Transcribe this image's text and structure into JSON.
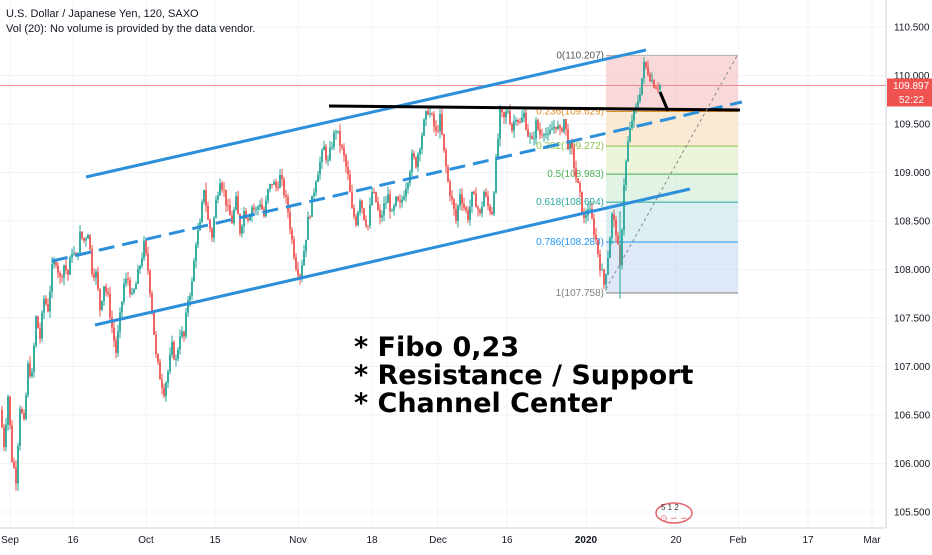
{
  "header": {
    "symbol_line": "U.S. Dollar / Japanese Yen, 120, SAXO",
    "volume_line": "Vol (20): No volume is provided by the data vendor."
  },
  "colors": {
    "background": "#ffffff",
    "candle_up": "#26a69a",
    "candle_down": "#ef5350",
    "channel": "#2c8fd9",
    "resistance": "#000000",
    "current_price_line": "#f28b8b",
    "current_price_tag": "#ef5350"
  },
  "price_tags": {
    "last_price": "109.897",
    "countdown": "52:22"
  },
  "annotations": [
    "* Fibo 0,23",
    "* Resistance / Support",
    "* Channel Center"
  ],
  "watermark_text": "5 1   2",
  "chart_data": {
    "type": "candlestick",
    "title": "U.S. Dollar / Japanese Yen, 120, SAXO",
    "ylim": [
      105.4,
      110.8
    ],
    "y_ticks": [
      "105.500",
      "106.000",
      "106.500",
      "107.000",
      "107.500",
      "108.000",
      "108.500",
      "109.000",
      "109.500",
      "110.000",
      "110.500"
    ],
    "x_ticks": [
      "Sep",
      "16",
      "Oct",
      "15",
      "Nov",
      "18",
      "Dec",
      "16",
      "2020",
      "20",
      "Feb",
      "17",
      "Mar"
    ],
    "last_price": 109.897,
    "countdown": "52:22",
    "close_path": [
      [
        0,
        106.55
      ],
      [
        4,
        106.2
      ],
      [
        8,
        106.7
      ],
      [
        12,
        106.05
      ],
      [
        16,
        105.85
      ],
      [
        20,
        106.6
      ],
      [
        24,
        106.4
      ],
      [
        28,
        107.0
      ],
      [
        32,
        106.9
      ],
      [
        36,
        107.5
      ],
      [
        40,
        107.3
      ],
      [
        44,
        107.7
      ],
      [
        48,
        107.6
      ],
      [
        52,
        108.0
      ],
      [
        56,
        108.1
      ],
      [
        60,
        107.9
      ],
      [
        64,
        108.05
      ],
      [
        68,
        107.95
      ],
      [
        72,
        108.2
      ],
      [
        76,
        108.1
      ],
      [
        80,
        108.35
      ],
      [
        84,
        108.3
      ],
      [
        88,
        108.4
      ],
      [
        92,
        108.0
      ],
      [
        96,
        107.95
      ],
      [
        100,
        107.6
      ],
      [
        104,
        107.85
      ],
      [
        108,
        107.7
      ],
      [
        112,
        107.4
      ],
      [
        116,
        107.15
      ],
      [
        120,
        107.5
      ],
      [
        124,
        107.85
      ],
      [
        128,
        107.9
      ],
      [
        132,
        107.7
      ],
      [
        136,
        107.85
      ],
      [
        140,
        108.05
      ],
      [
        144,
        108.25
      ],
      [
        148,
        108.0
      ],
      [
        152,
        107.6
      ],
      [
        156,
        107.1
      ],
      [
        160,
        106.9
      ],
      [
        164,
        106.75
      ],
      [
        168,
        106.95
      ],
      [
        172,
        107.2
      ],
      [
        176,
        107.05
      ],
      [
        180,
        107.35
      ],
      [
        184,
        107.3
      ],
      [
        188,
        107.7
      ],
      [
        192,
        107.85
      ],
      [
        196,
        108.3
      ],
      [
        200,
        108.45
      ],
      [
        204,
        108.85
      ],
      [
        208,
        108.5
      ],
      [
        212,
        108.35
      ],
      [
        216,
        108.7
      ],
      [
        220,
        108.95
      ],
      [
        224,
        108.8
      ],
      [
        228,
        108.6
      ],
      [
        232,
        108.5
      ],
      [
        236,
        108.7
      ],
      [
        240,
        108.4
      ],
      [
        244,
        108.6
      ],
      [
        248,
        108.55
      ],
      [
        252,
        108.65
      ],
      [
        256,
        108.6
      ],
      [
        260,
        108.7
      ],
      [
        264,
        108.55
      ],
      [
        268,
        108.8
      ],
      [
        272,
        108.9
      ],
      [
        276,
        108.85
      ],
      [
        280,
        108.95
      ],
      [
        284,
        108.8
      ],
      [
        288,
        108.6
      ],
      [
        292,
        108.3
      ],
      [
        296,
        108.05
      ],
      [
        300,
        107.95
      ],
      [
        304,
        108.2
      ],
      [
        308,
        108.5
      ],
      [
        312,
        108.7
      ],
      [
        316,
        108.95
      ],
      [
        320,
        109.1
      ],
      [
        324,
        109.25
      ],
      [
        328,
        109.1
      ],
      [
        332,
        109.3
      ],
      [
        336,
        109.45
      ],
      [
        340,
        109.3
      ],
      [
        344,
        109.15
      ],
      [
        348,
        108.95
      ],
      [
        352,
        108.6
      ],
      [
        356,
        108.5
      ],
      [
        360,
        108.75
      ],
      [
        364,
        108.55
      ],
      [
        368,
        108.45
      ],
      [
        372,
        108.8
      ],
      [
        376,
        108.7
      ],
      [
        380,
        108.5
      ],
      [
        384,
        108.65
      ],
      [
        388,
        108.75
      ],
      [
        392,
        108.55
      ],
      [
        396,
        108.7
      ],
      [
        400,
        108.65
      ],
      [
        404,
        108.8
      ],
      [
        408,
        108.95
      ],
      [
        412,
        109.15
      ],
      [
        416,
        109.1
      ],
      [
        420,
        109.3
      ],
      [
        424,
        109.5
      ],
      [
        428,
        109.65
      ],
      [
        432,
        109.55
      ],
      [
        436,
        109.4
      ],
      [
        440,
        109.55
      ],
      [
        444,
        109.2
      ],
      [
        448,
        108.9
      ],
      [
        452,
        108.7
      ],
      [
        456,
        108.5
      ],
      [
        460,
        108.8
      ],
      [
        464,
        108.65
      ],
      [
        468,
        108.55
      ],
      [
        472,
        108.75
      ],
      [
        476,
        108.7
      ],
      [
        480,
        108.55
      ],
      [
        484,
        108.8
      ],
      [
        488,
        108.65
      ],
      [
        492,
        108.6
      ],
      [
        496,
        109.1
      ],
      [
        500,
        109.6
      ],
      [
        504,
        109.55
      ],
      [
        508,
        109.65
      ],
      [
        512,
        109.45
      ],
      [
        516,
        109.6
      ],
      [
        520,
        109.5
      ],
      [
        524,
        109.6
      ],
      [
        528,
        109.4
      ],
      [
        532,
        109.3
      ],
      [
        536,
        109.5
      ],
      [
        540,
        109.4
      ],
      [
        544,
        109.45
      ],
      [
        548,
        109.35
      ],
      [
        552,
        109.45
      ],
      [
        556,
        109.5
      ],
      [
        560,
        109.4
      ],
      [
        564,
        109.55
      ],
      [
        568,
        109.3
      ],
      [
        572,
        109.2
      ],
      [
        576,
        108.95
      ],
      [
        580,
        108.75
      ],
      [
        584,
        108.5
      ],
      [
        588,
        108.65
      ],
      [
        592,
        108.5
      ],
      [
        596,
        108.3
      ],
      [
        600,
        108.05
      ],
      [
        604,
        107.85
      ],
      [
        608,
        108.15
      ],
      [
        612,
        108.55
      ],
      [
        616,
        108.4
      ],
      [
        620,
        108.0
      ],
      [
        624,
        108.9
      ],
      [
        628,
        109.3
      ],
      [
        632,
        109.55
      ],
      [
        636,
        109.65
      ],
      [
        640,
        109.85
      ],
      [
        644,
        110.1
      ],
      [
        648,
        110.05
      ],
      [
        652,
        109.95
      ],
      [
        656,
        109.9
      ],
      [
        660,
        109.897
      ]
    ],
    "fibonacci": [
      {
        "level": "0",
        "price": 110.207,
        "label": "0(110.207)"
      },
      {
        "level": "0.236",
        "price": 109.629,
        "label": "0.236(109.629)"
      },
      {
        "level": "0.382",
        "price": 109.272,
        "label": "0.382(109.272)"
      },
      {
        "level": "0.5",
        "price": 108.983,
        "label": "0.5(108.983)"
      },
      {
        "level": "0.618",
        "price": 108.694,
        "label": "0.618(108.694)"
      },
      {
        "level": "0.786",
        "price": 108.283,
        "label": "0.786(108.283)"
      },
      {
        "level": "1",
        "price": 107.758,
        "label": "1(107.758)"
      }
    ]
  }
}
